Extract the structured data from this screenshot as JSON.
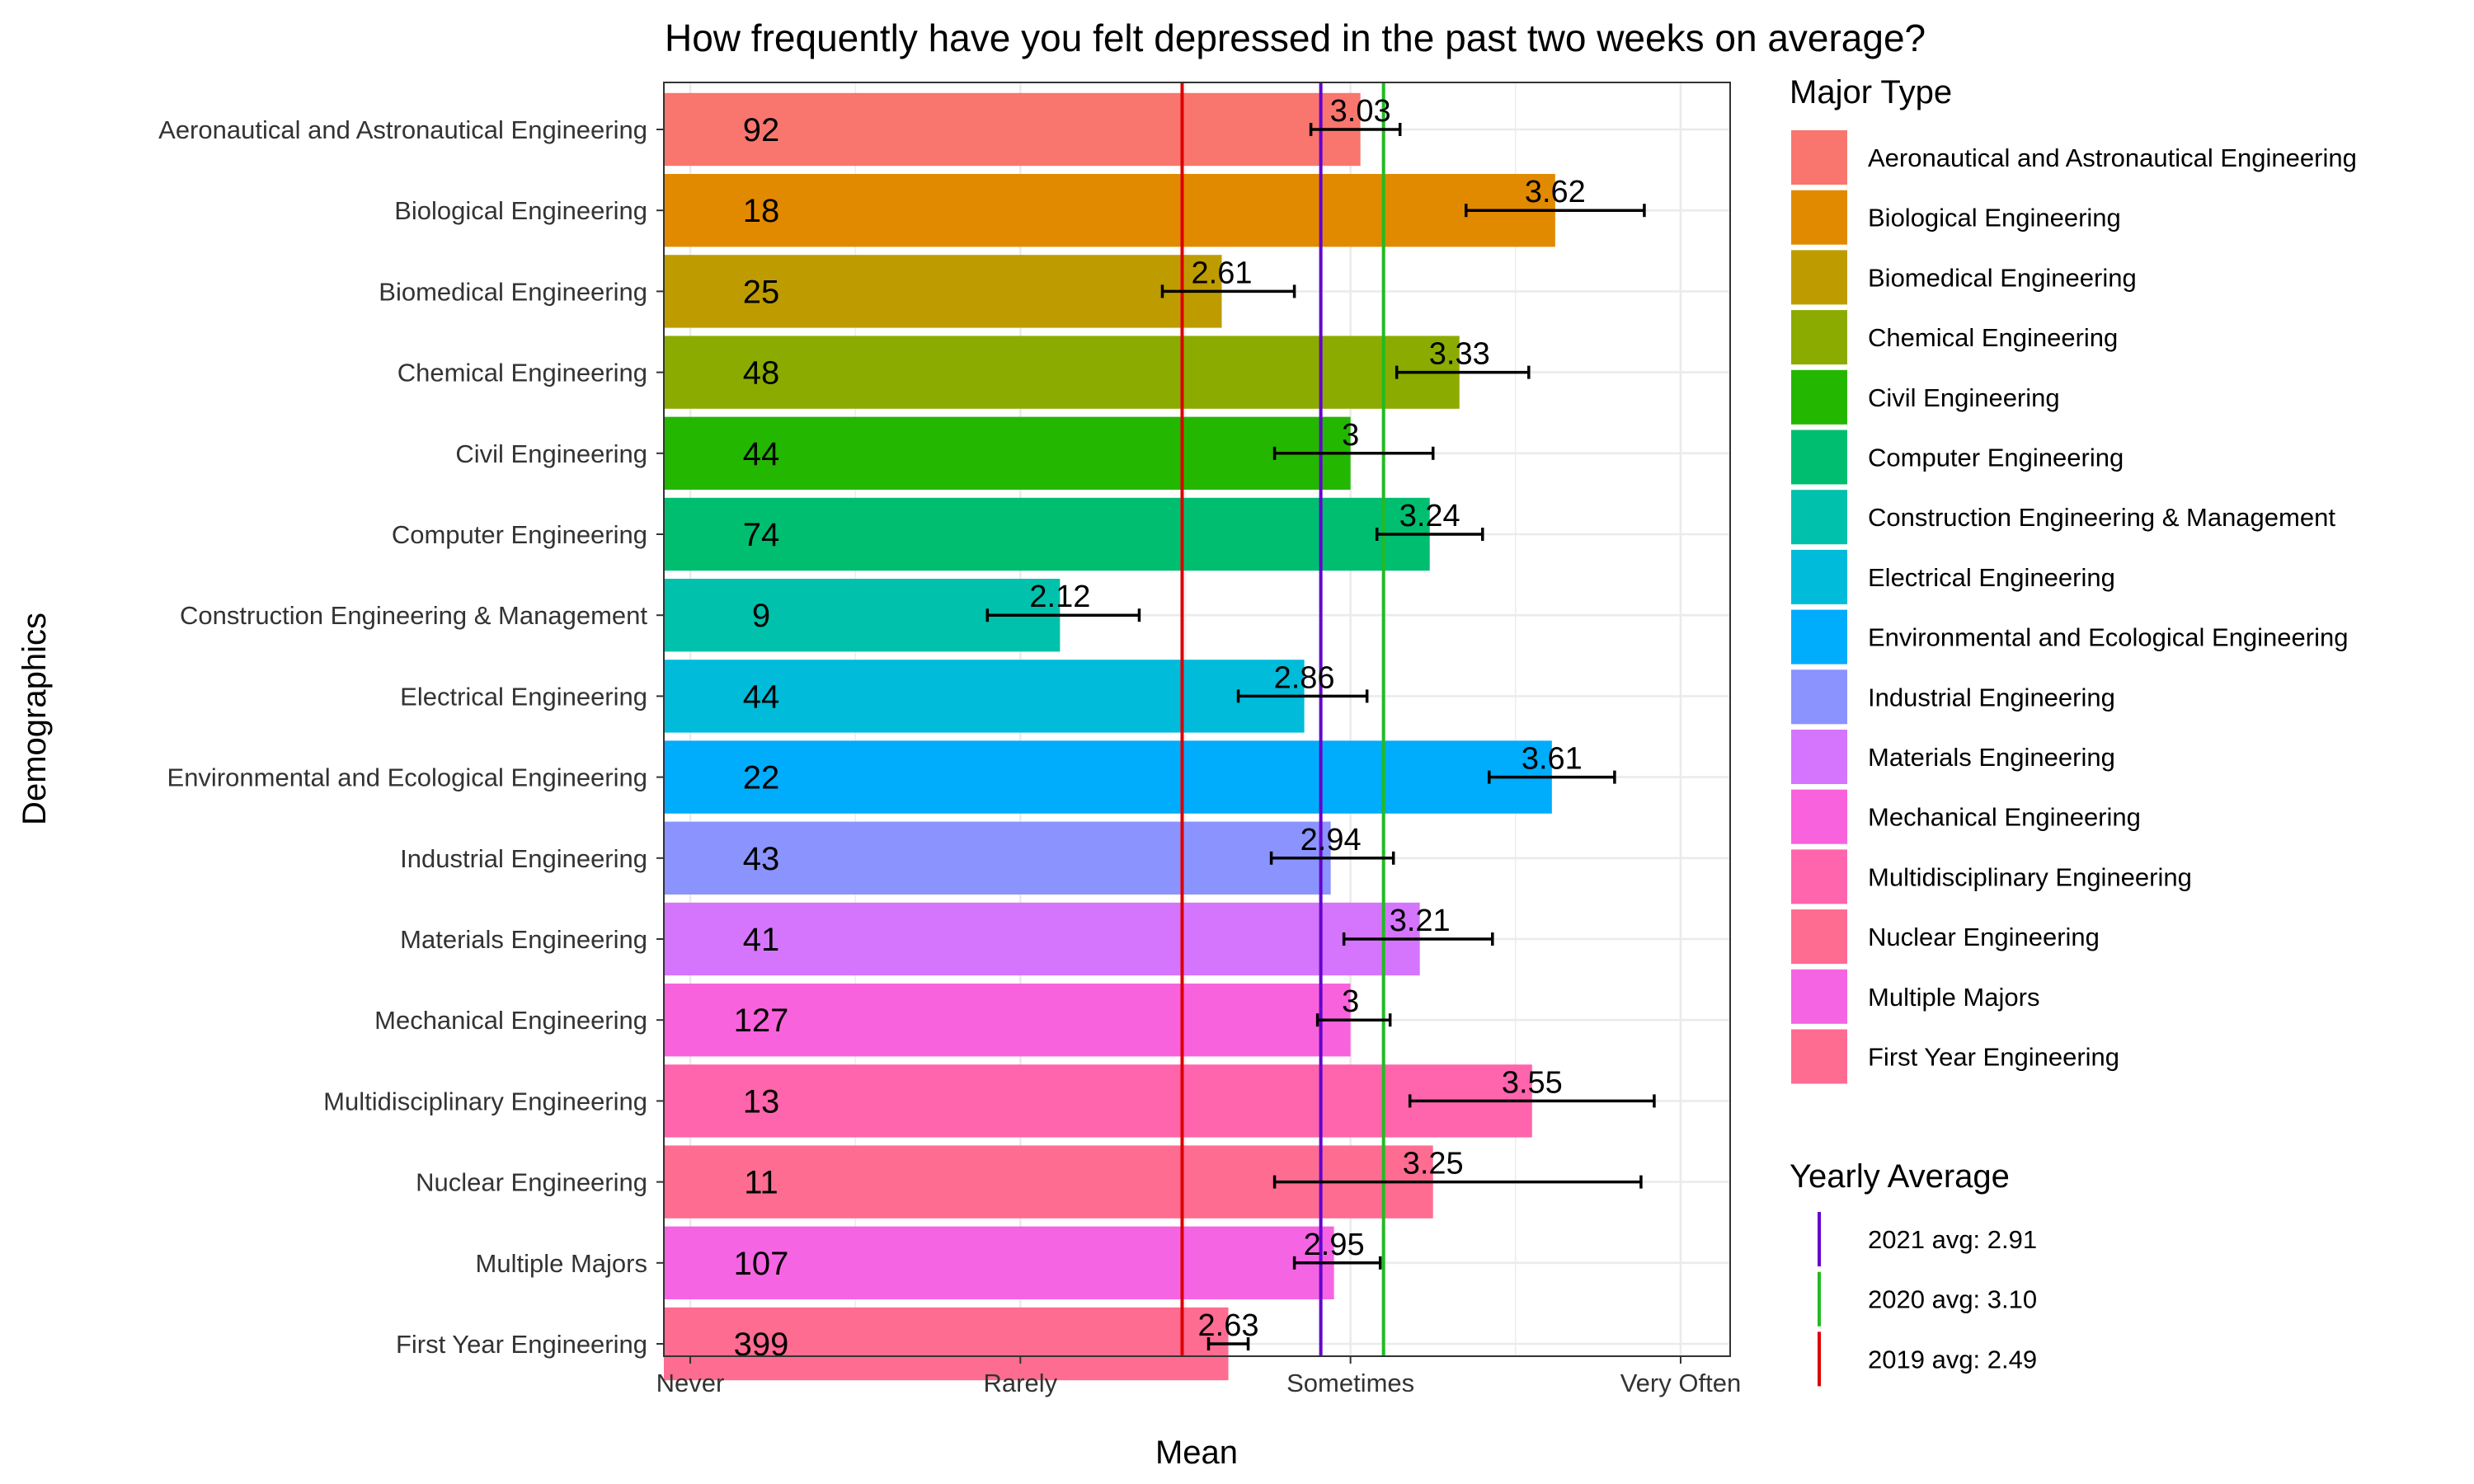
{
  "chart_data": {
    "type": "bar",
    "orientation": "horizontal",
    "title": "How frequently have you felt depressed in the past two weeks on average?",
    "xlabel": "Mean",
    "ylabel": "Demographics",
    "xlim": [
      0.92,
      4.15
    ],
    "x_ticks": [
      {
        "value": 1,
        "label": "Never"
      },
      {
        "value": 2,
        "label": "Rarely"
      },
      {
        "value": 3,
        "label": "Sometimes"
      },
      {
        "value": 4,
        "label": "Very Often"
      }
    ],
    "grid": true,
    "categories": [
      "Aeronautical and Astronautical Engineering",
      "Biological Engineering",
      "Biomedical Engineering",
      "Chemical Engineering",
      "Civil Engineering",
      "Computer Engineering",
      "Construction Engineering & Management",
      "Electrical Engineering",
      "Environmental and Ecological Engineering",
      "Industrial Engineering",
      "Materials Engineering",
      "Mechanical Engineering",
      "Multidisciplinary Engineering",
      "Nuclear Engineering",
      "Multiple Majors",
      "First Year Engineering"
    ],
    "values": [
      3.03,
      3.62,
      2.61,
      3.33,
      3.0,
      3.24,
      2.12,
      2.86,
      3.61,
      2.94,
      3.21,
      3.0,
      3.55,
      3.25,
      2.95,
      2.63
    ],
    "value_labels": [
      "3.03",
      "3.62",
      "2.61",
      "3.33",
      "3",
      "3.24",
      "2.12",
      "2.86",
      "3.61",
      "2.94",
      "3.21",
      "3",
      "3.55",
      "3.25",
      "2.95",
      "2.63"
    ],
    "counts": [
      "92",
      "18",
      "25",
      "48",
      "44",
      "74",
      "9",
      "44",
      "22",
      "43",
      "41",
      "127",
      "13",
      "11",
      "107",
      "399"
    ],
    "error_low": [
      2.88,
      3.35,
      2.43,
      3.14,
      2.77,
      3.08,
      1.9,
      2.66,
      3.42,
      2.76,
      2.98,
      2.9,
      3.18,
      2.77,
      2.83,
      2.57
    ],
    "error_high": [
      3.15,
      3.89,
      2.83,
      3.54,
      3.25,
      3.4,
      2.36,
      3.05,
      3.8,
      3.13,
      3.43,
      3.12,
      3.92,
      3.88,
      3.09,
      2.69
    ],
    "colors": [
      "#F8766D",
      "#E18A00",
      "#BE9C00",
      "#8CAB00",
      "#24B700",
      "#00BE70",
      "#00C1AB",
      "#00BBDA",
      "#00ACFC",
      "#8B93FF",
      "#D575FE",
      "#F962DD",
      "#FF65AC",
      "#FF6C91",
      "#F564E3",
      "#FF6C91"
    ],
    "reference_lines": [
      {
        "label": "2021 avg: 2.91",
        "value": 2.91,
        "color": "#6600CC"
      },
      {
        "label": "2020 avg: 3.10",
        "value": 3.1,
        "color": "#22BB22"
      },
      {
        "label": "2019 avg: 2.49",
        "value": 2.49,
        "color": "#DD0000"
      }
    ],
    "legend": {
      "placement": "right",
      "fill_title": "Major Type",
      "line_title": "Yearly Average"
    }
  }
}
